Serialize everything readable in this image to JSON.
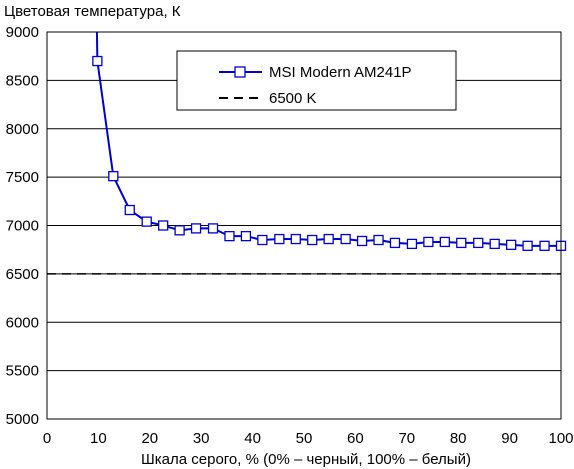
{
  "chart_data": {
    "type": "line",
    "ylabel": "Цветовая температура, К",
    "xlabel": "Шкала серого, % (0% – черный, 100% – белый)",
    "xlim": [
      0,
      100
    ],
    "ylim": [
      5000,
      9000
    ],
    "x_ticks": [
      0,
      10,
      20,
      30,
      40,
      50,
      60,
      70,
      80,
      90,
      100
    ],
    "y_ticks": [
      5000,
      5500,
      6000,
      6500,
      7000,
      7500,
      8000,
      8500,
      9000
    ],
    "grid": "horizontal",
    "legend_position": "top-right",
    "series": [
      {
        "name": "MSI Modern AM241P",
        "color": "#0000cc",
        "marker": "square-open",
        "x": [
          9.8,
          12.9,
          16.1,
          19.4,
          22.6,
          25.8,
          29.0,
          32.3,
          35.5,
          38.7,
          41.9,
          45.2,
          48.4,
          51.6,
          54.8,
          58.1,
          61.3,
          64.5,
          67.7,
          71.0,
          74.2,
          77.4,
          80.6,
          83.9,
          87.1,
          90.3,
          93.5,
          96.8,
          100
        ],
        "y": [
          8700,
          7510,
          7160,
          7040,
          7000,
          6950,
          6970,
          6970,
          6890,
          6890,
          6850,
          6860,
          6860,
          6850,
          6860,
          6860,
          6840,
          6850,
          6820,
          6810,
          6830,
          6830,
          6820,
          6820,
          6810,
          6800,
          6790,
          6790,
          6790
        ],
        "lead_in": {
          "x": [
            9.6,
            9.8
          ],
          "y": [
            9400,
            8700
          ]
        }
      },
      {
        "name": "6500 K",
        "color": "#000000",
        "dash": true,
        "x": [
          0,
          100
        ],
        "y": [
          6500,
          6500
        ]
      }
    ]
  }
}
